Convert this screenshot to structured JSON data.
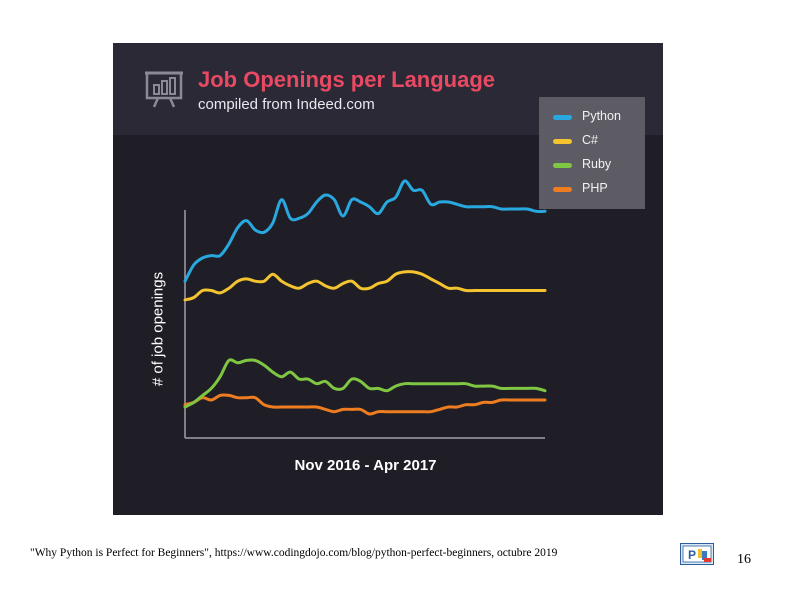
{
  "chart_data": {
    "type": "line",
    "title": "Job Openings per Language",
    "subtitle": "compiled from Indeed.com",
    "xlabel": "Nov 2016 - Apr 2017",
    "ylabel": "# of job openings",
    "x": [
      0,
      1,
      2,
      3,
      4,
      5,
      6,
      7,
      8,
      9,
      10,
      11,
      12,
      13,
      14,
      15,
      16,
      17,
      18,
      19,
      20,
      21,
      22,
      23,
      24,
      25,
      26,
      27,
      28,
      29,
      30,
      31,
      32,
      33,
      34,
      35,
      36,
      37,
      38,
      39,
      40,
      41
    ],
    "xlim": [
      0,
      41
    ],
    "ylim": [
      0,
      100
    ],
    "grid": false,
    "legend_position": "top-right",
    "series": [
      {
        "name": "Python",
        "color": "#29a8e0",
        "values": [
          63,
          70,
          73,
          74,
          74,
          79,
          86,
          89,
          85,
          84,
          88,
          98,
          90,
          90,
          92,
          97,
          100,
          98,
          91,
          98,
          97,
          95,
          92,
          97,
          99,
          106,
          102,
          102,
          96,
          97,
          97,
          96,
          95,
          95,
          95,
          95,
          94,
          94,
          94,
          94,
          93,
          93
        ]
      },
      {
        "name": "C#",
        "color": "#f3c330",
        "values": [
          55,
          56,
          59,
          59,
          58,
          60,
          63,
          64,
          63,
          63,
          66,
          63,
          61,
          60,
          62,
          63,
          61,
          60,
          62,
          63,
          60,
          60,
          62,
          63,
          66,
          67,
          67,
          66,
          64,
          62,
          60,
          60,
          59,
          59,
          59,
          59,
          59,
          59,
          59,
          59,
          59,
          59
        ]
      },
      {
        "name": "Ruby",
        "color": "#7fc642",
        "values": [
          9,
          11,
          14,
          17,
          22,
          29,
          28,
          29,
          29,
          27,
          24,
          22,
          24,
          21,
          21,
          19,
          20,
          17,
          17,
          21,
          20,
          17,
          17,
          16,
          18,
          19,
          19,
          19,
          19,
          19,
          19,
          19,
          19,
          18,
          18,
          18,
          17,
          17,
          17,
          17,
          17,
          16
        ]
      },
      {
        "name": "PHP",
        "color": "#ed7d20",
        "values": [
          10,
          11,
          13,
          12,
          14,
          14,
          13,
          13,
          13,
          10,
          9,
          9,
          9,
          9,
          9,
          9,
          8,
          7,
          8,
          8,
          8,
          6,
          7,
          7,
          7,
          7,
          7,
          7,
          7,
          8,
          9,
          9,
          10,
          10,
          11,
          11,
          12,
          12,
          12,
          12,
          12,
          12
        ]
      }
    ]
  },
  "caption": "\"Why Python is Perfect for Beginners\", https://www.codingdojo.com/blog/python-perfect-beginners, octubre 2019",
  "page_number": "16",
  "logo": "python-course-logo"
}
